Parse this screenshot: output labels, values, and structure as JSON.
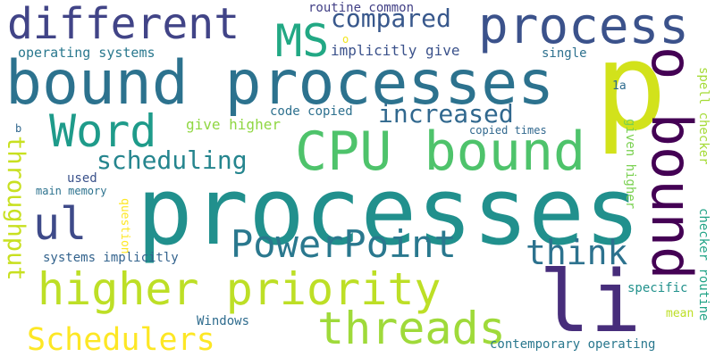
{
  "words": [
    {
      "text": "processes",
      "color": "#21908d"
    },
    {
      "text": "p",
      "color": "#d2e21b"
    },
    {
      "text": "bound processes",
      "color": "#2c728e"
    },
    {
      "text": "CPU bound",
      "color": "#4ec36b"
    },
    {
      "text": "o bound",
      "color": "#440154"
    },
    {
      "text": "li",
      "color": "#472d7b"
    },
    {
      "text": "process",
      "color": "#3b528b"
    },
    {
      "text": "different",
      "color": "#414487"
    },
    {
      "text": "higher priority",
      "color": "#bddf26"
    },
    {
      "text": "Word",
      "color": "#1e9b8a"
    },
    {
      "text": "threads",
      "color": "#9fda3a"
    },
    {
      "text": "PowerPoint",
      "color": "#2a788e"
    },
    {
      "text": "MS",
      "color": "#22a884"
    },
    {
      "text": "ul",
      "color": "#3e4a89"
    },
    {
      "text": "Schedulers",
      "color": "#fde725"
    },
    {
      "text": "think",
      "color": "#2c728e"
    },
    {
      "text": "increased",
      "color": "#31688e"
    },
    {
      "text": "scheduling",
      "color": "#25858e"
    },
    {
      "text": "compared",
      "color": "#38588c"
    },
    {
      "text": "throughput",
      "color": "#c8e020"
    },
    {
      "text": "operating systems",
      "color": "#2a788e"
    },
    {
      "text": "implicitly give",
      "color": "#3b528b"
    },
    {
      "text": "routine common",
      "color": "#424086"
    },
    {
      "text": "code copied",
      "color": "#2d708e"
    },
    {
      "text": "give higher",
      "color": "#90d743"
    },
    {
      "text": "copied times",
      "color": "#31688e"
    },
    {
      "text": "systems implicitly",
      "color": "#33638d"
    },
    {
      "text": "contemporary operating",
      "color": "#2a788e"
    },
    {
      "text": "Windows",
      "color": "#2f6c8e"
    },
    {
      "text": "specific",
      "color": "#21918c"
    },
    {
      "text": "main memory",
      "color": "#2c728e"
    },
    {
      "text": "used",
      "color": "#3b528b"
    },
    {
      "text": "question",
      "color": "#fde725"
    },
    {
      "text": "given higher",
      "color": "#7ad151"
    },
    {
      "text": "checker routine",
      "color": "#20a386"
    },
    {
      "text": "spell checker",
      "color": "#a5db36"
    },
    {
      "text": "single",
      "color": "#2d708e"
    },
    {
      "text": "mean",
      "color": "#bddf26"
    },
    {
      "text": "1a",
      "color": "#2f6c8e"
    },
    {
      "text": "b",
      "color": "#31688e"
    },
    {
      "text": "o",
      "color": "#f1e51d"
    }
  ]
}
